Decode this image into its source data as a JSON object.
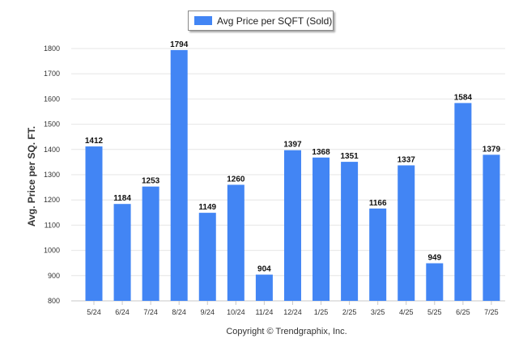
{
  "legend": {
    "label": "Avg Price per SQFT (Sold)",
    "color": "#4285f4"
  },
  "footer": "Copyright © Trendgraphix, Inc.",
  "chart_data": {
    "type": "bar",
    "categories": [
      "5/24",
      "6/24",
      "7/24",
      "8/24",
      "9/24",
      "10/24",
      "11/24",
      "12/24",
      "1/25",
      "2/25",
      "3/25",
      "4/25",
      "5/25",
      "6/25",
      "7/25"
    ],
    "series": [
      {
        "name": "Avg Price per SQFT (Sold)",
        "values": [
          1412,
          1184,
          1253,
          1794,
          1149,
          1260,
          904,
          1397,
          1368,
          1351,
          1166,
          1337,
          949,
          1584,
          1379
        ]
      }
    ],
    "ylabel": "Avg. Price per SQ. FT.",
    "xlabel": "",
    "ylim": [
      800,
      1800
    ],
    "yticks": [
      800,
      900,
      1000,
      1100,
      1200,
      1300,
      1400,
      1500,
      1600,
      1700,
      1800
    ],
    "grid": true,
    "legend_position": "top-center",
    "data_labels": true
  }
}
